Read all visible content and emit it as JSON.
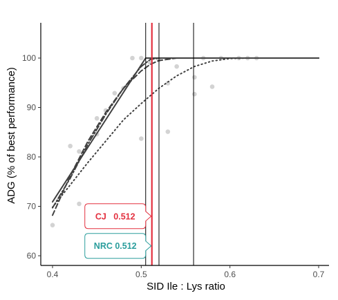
{
  "chart_data": {
    "type": "scatter",
    "xlabel": "SID Ile : Lys ratio",
    "ylabel": "ADG (% of best performance)",
    "xlim": [
      0.385,
      0.715
    ],
    "ylim": [
      58.2,
      107.2
    ],
    "x_ticks": [
      0.4,
      0.5,
      0.6,
      0.7
    ],
    "x_tick_labels": [
      "0.4",
      "0.5",
      "0.6",
      "0.7"
    ],
    "y_ticks": [
      60,
      70,
      80,
      90,
      100
    ],
    "y_tick_labels": [
      "60",
      "70",
      "80",
      "90",
      "100"
    ],
    "grid": false,
    "colors": {
      "points": "#d3d3d3",
      "fits": "#404040",
      "vlines": "#000000",
      "cj": "#e3303f",
      "nrc": "#2a9d9c"
    },
    "points": [
      {
        "x": 0.4,
        "y": 66.2
      },
      {
        "x": 0.42,
        "y": 82.2
      },
      {
        "x": 0.43,
        "y": 70.5
      },
      {
        "x": 0.43,
        "y": 81.1
      },
      {
        "x": 0.45,
        "y": 84.6
      },
      {
        "x": 0.45,
        "y": 87.8
      },
      {
        "x": 0.46,
        "y": 89.4
      },
      {
        "x": 0.47,
        "y": 92.9
      },
      {
        "x": 0.48,
        "y": 93.9
      },
      {
        "x": 0.49,
        "y": 100.0
      },
      {
        "x": 0.5,
        "y": 100.0
      },
      {
        "x": 0.5,
        "y": 83.7
      },
      {
        "x": 0.51,
        "y": 99.1
      },
      {
        "x": 0.52,
        "y": 99.7
      },
      {
        "x": 0.53,
        "y": 94.9
      },
      {
        "x": 0.53,
        "y": 85.1
      },
      {
        "x": 0.54,
        "y": 98.3
      },
      {
        "x": 0.56,
        "y": 96.1
      },
      {
        "x": 0.56,
        "y": 92.7
      },
      {
        "x": 0.57,
        "y": 100.0
      },
      {
        "x": 0.58,
        "y": 94.2
      },
      {
        "x": 0.59,
        "y": 100.0
      },
      {
        "x": 0.61,
        "y": 100.0
      },
      {
        "x": 0.62,
        "y": 100.0
      },
      {
        "x": 0.63,
        "y": 100.0
      }
    ],
    "fits": [
      {
        "style": "solid",
        "x": [
          0.4,
          0.505,
          0.7
        ],
        "y": [
          70.9,
          100.0,
          100.0
        ]
      },
      {
        "style": "dashed",
        "x": [
          0.4,
          0.42,
          0.44,
          0.46,
          0.48,
          0.5,
          0.51,
          0.52,
          0.54,
          0.56,
          0.58,
          0.6,
          0.7
        ],
        "y": [
          68.2,
          76.2,
          83.2,
          89.0,
          93.9,
          97.4,
          98.7,
          99.5,
          100.0,
          100.0,
          100.0,
          100.0,
          100.0
        ]
      },
      {
        "style": "dash-dot",
        "x": [
          0.4,
          0.42,
          0.44,
          0.46,
          0.48,
          0.5,
          0.51,
          0.52,
          0.54,
          0.56,
          0.58,
          0.6,
          0.7
        ],
        "y": [
          69.7,
          75.7,
          82.6,
          88.6,
          93.9,
          98.3,
          99.7,
          100.0,
          100.0,
          100.0,
          100.0,
          100.0,
          100.0
        ]
      },
      {
        "style": "dotted",
        "x": [
          0.4,
          0.44,
          0.48,
          0.5,
          0.52,
          0.54,
          0.56,
          0.58,
          0.6,
          0.62,
          0.7
        ],
        "y": [
          69.8,
          78.9,
          87.5,
          90.8,
          93.9,
          96.4,
          98.3,
          99.4,
          99.9,
          100.0,
          100.0
        ]
      }
    ],
    "vlines": [
      {
        "x": 0.505,
        "color": "#000000"
      },
      {
        "x": 0.512,
        "color": "#e3303f"
      },
      {
        "x": 0.52,
        "color": "#000000"
      },
      {
        "x": 0.559,
        "color": "#000000"
      }
    ],
    "annotations": [
      {
        "name": "CJ",
        "value": "0.512",
        "text": "CJ   0.512",
        "x": 0.512,
        "y": 68.0,
        "color": "#e3303f"
      },
      {
        "name": "NRC",
        "value": "0.512",
        "text": "NRC 0.512",
        "x": 0.512,
        "y": 62.0,
        "color": "#2a9d9c"
      }
    ]
  }
}
